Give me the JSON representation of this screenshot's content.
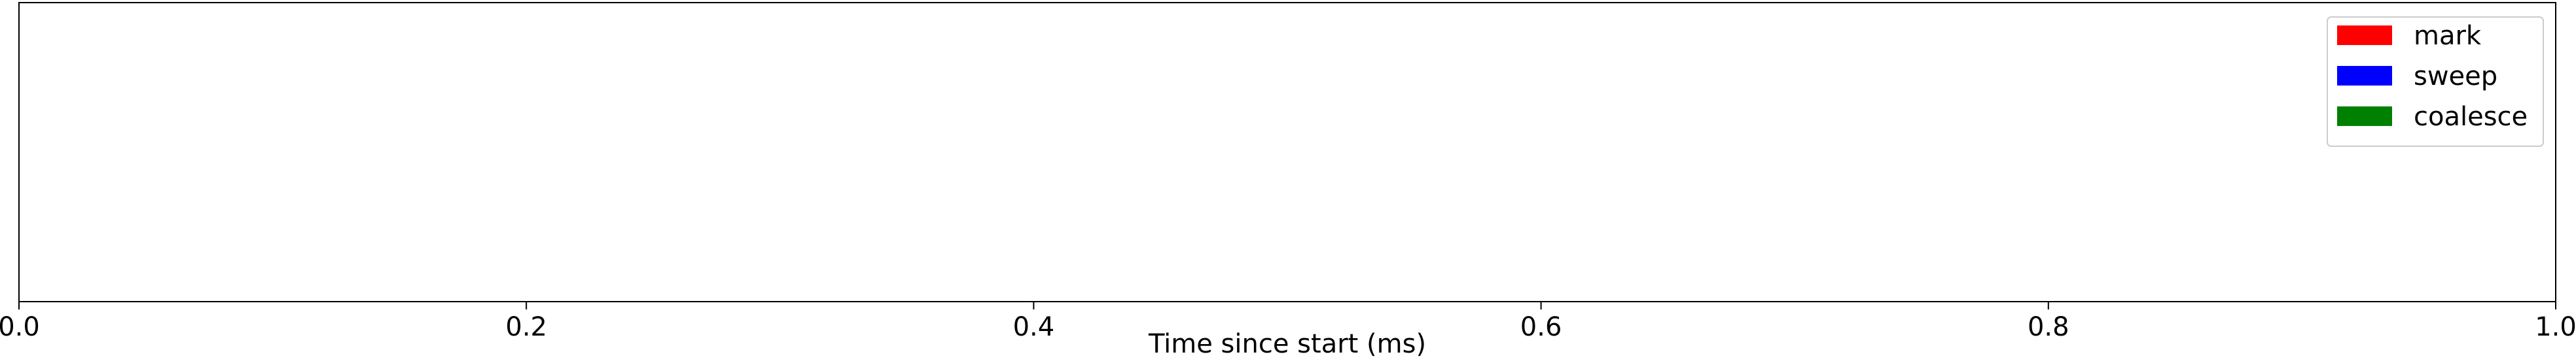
{
  "chart_data": {
    "type": "bar",
    "title": "",
    "xlabel": "Time since start (ms)",
    "ylabel": "",
    "xlim": [
      0.0,
      1.0
    ],
    "x_ticks": [
      "0.0",
      "0.2",
      "0.4",
      "0.6",
      "0.8",
      "1.0"
    ],
    "y_ticks": [],
    "grid": false,
    "legend_position": "top-right",
    "series": [
      {
        "name": "mark",
        "color": "#ff0000",
        "values": []
      },
      {
        "name": "sweep",
        "color": "#0000ff",
        "values": []
      },
      {
        "name": "coalesce",
        "color": "#008000",
        "values": []
      }
    ]
  }
}
